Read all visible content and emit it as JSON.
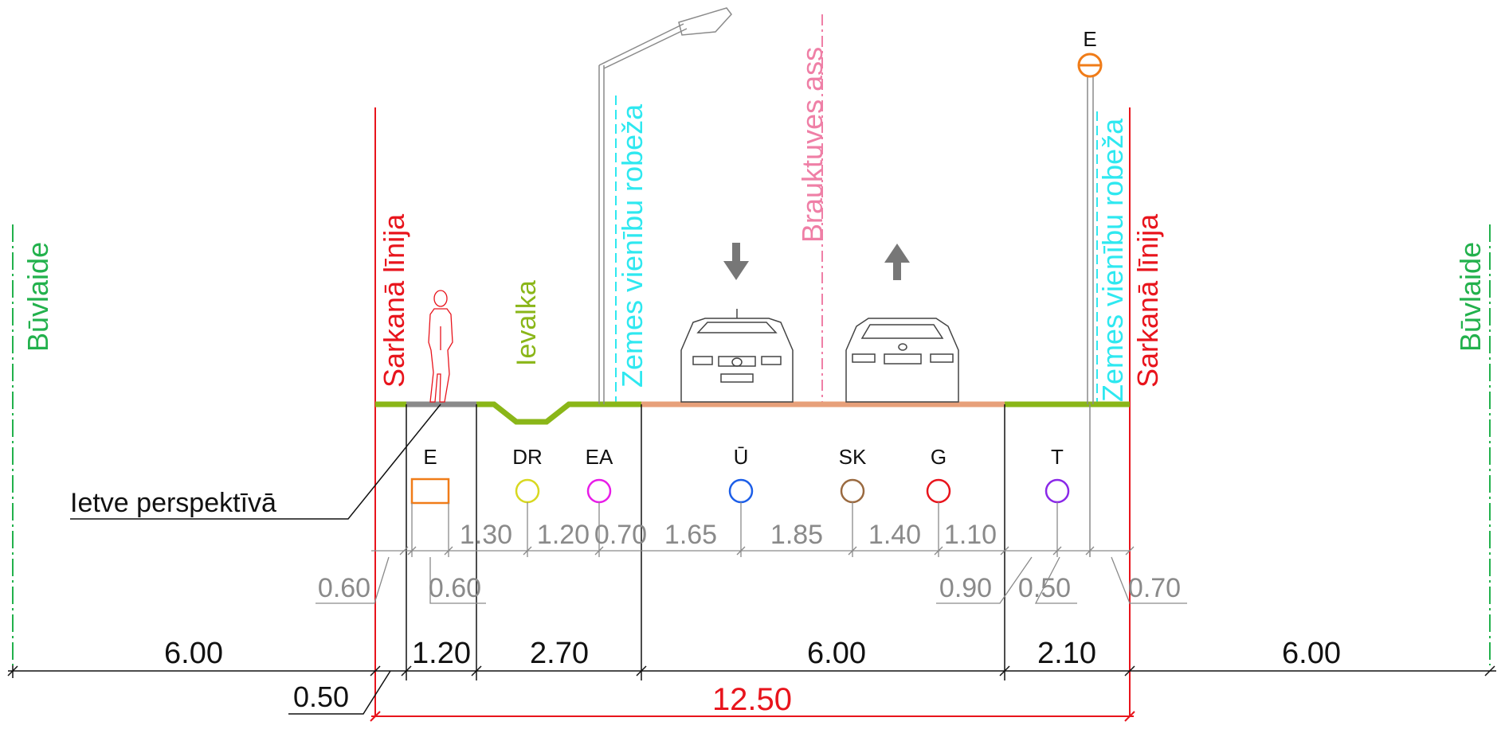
{
  "colors": {
    "red": "#e8141c",
    "green": "#22b14c",
    "cyan": "#2ee8f0",
    "pink": "#ef7fa6",
    "olive": "#8ab618",
    "road": "#e7a07a",
    "gray_dim": "#8a8a8a",
    "black": "#111111",
    "orange": "#f07c18",
    "yellow": "#d8d820",
    "magenta": "#e81ce8",
    "blue": "#1c5ee8",
    "brown": "#9a6a40",
    "purple": "#8a28e8"
  },
  "labels": {
    "buvlaide": "Būvlaide",
    "sarkana_linija": "Sarkanā līnija",
    "zemes_robeza": "Zemes vienību robeža",
    "brauktuves_ass": "Brauktuves ass",
    "ievalka": "Ievalka",
    "ietve_perspektiva": "Ietve perspektīvā",
    "lamp_e": "E"
  },
  "utilities": [
    {
      "code": "E",
      "symbol": "rectangle",
      "color": "orange"
    },
    {
      "code": "DR",
      "symbol": "circle",
      "color": "yellow"
    },
    {
      "code": "EA",
      "symbol": "circle",
      "color": "magenta"
    },
    {
      "code": "Ū",
      "symbol": "circle",
      "color": "blue"
    },
    {
      "code": "SK",
      "symbol": "circle",
      "color": "brown"
    },
    {
      "code": "G",
      "symbol": "circle",
      "color": "red"
    },
    {
      "code": "T",
      "symbol": "circle",
      "color": "purple"
    }
  ],
  "utility_offsets": {
    "top_row": [
      "1.30",
      "1.20",
      "0.70",
      "1.65",
      "1.85",
      "1.40",
      "1.10"
    ],
    "bottom_row": [
      "0.60",
      "0.60",
      "0.90",
      "0.50",
      "0.70"
    ]
  },
  "dimensions": {
    "segments": [
      "6.00",
      "1.20",
      "2.70",
      "6.00",
      "2.10",
      "6.00"
    ],
    "left_offset": "0.50",
    "total": "12.50"
  },
  "traffic_arrows": [
    "down-arrow-icon",
    "up-arrow-icon"
  ]
}
